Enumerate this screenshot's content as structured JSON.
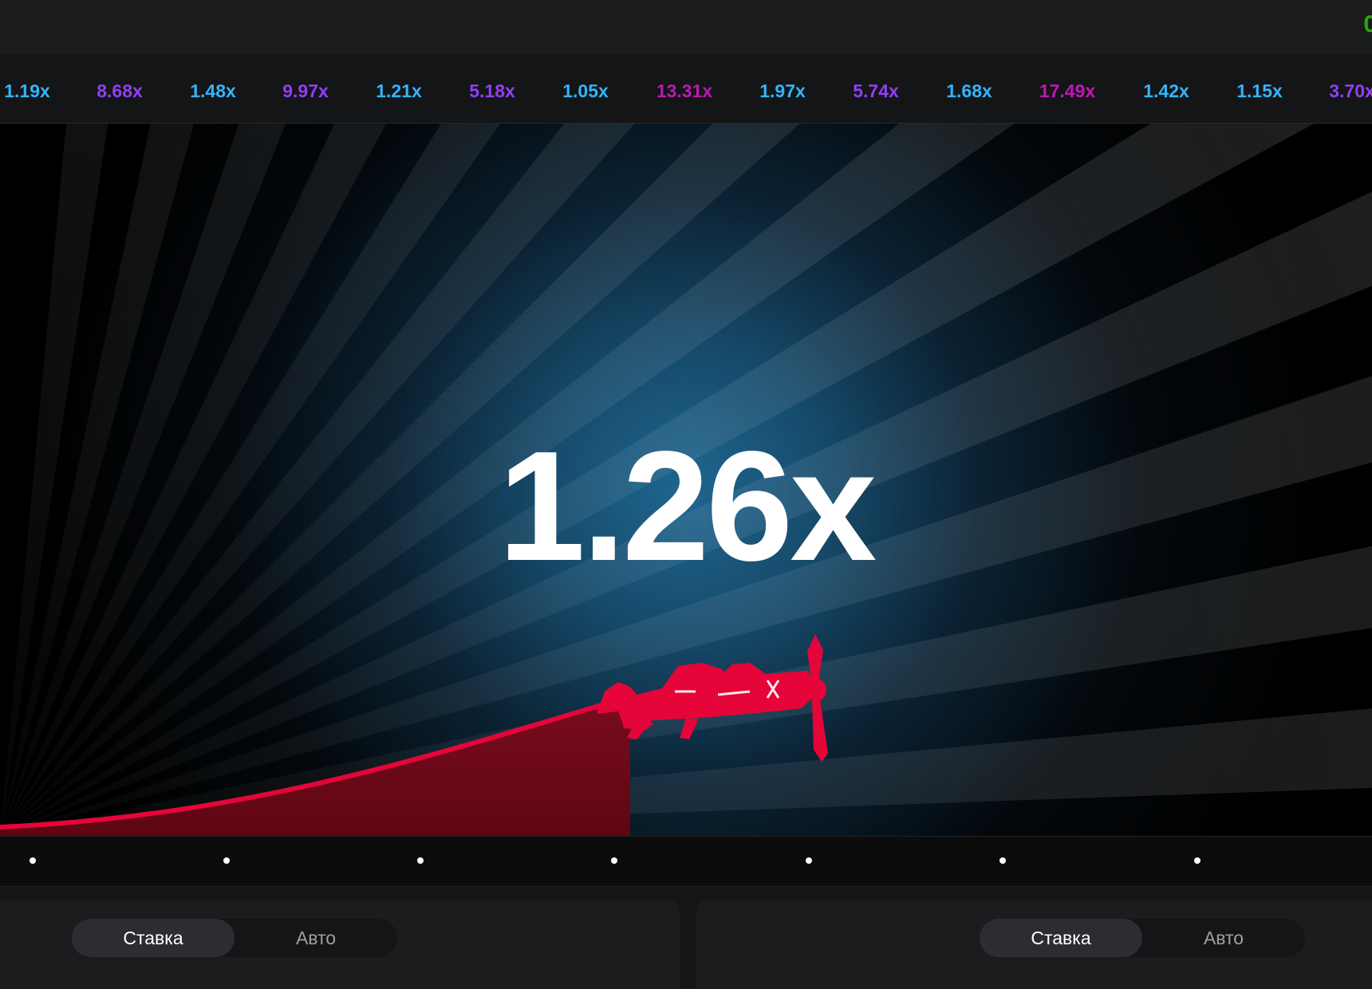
{
  "header": {
    "balance_fragment": "0"
  },
  "history": [
    {
      "value": "1.19x",
      "color": "#34b4ff"
    },
    {
      "value": "8.68x",
      "color": "#913ef8"
    },
    {
      "value": "1.48x",
      "color": "#34b4ff"
    },
    {
      "value": "9.97x",
      "color": "#913ef8"
    },
    {
      "value": "1.21x",
      "color": "#34b4ff"
    },
    {
      "value": "5.18x",
      "color": "#913ef8"
    },
    {
      "value": "1.05x",
      "color": "#34b4ff"
    },
    {
      "value": "13.31x",
      "color": "#c017b4"
    },
    {
      "value": "1.97x",
      "color": "#34b4ff"
    },
    {
      "value": "5.74x",
      "color": "#913ef8"
    },
    {
      "value": "1.68x",
      "color": "#34b4ff"
    },
    {
      "value": "17.49x",
      "color": "#c017b4"
    },
    {
      "value": "1.42x",
      "color": "#34b4ff"
    },
    {
      "value": "1.15x",
      "color": "#34b4ff"
    },
    {
      "value": "3.70x",
      "color": "#913ef8"
    }
  ],
  "game": {
    "multiplier": "1.26x",
    "plane_icon": "red-propeller-plane",
    "plane_color": "#e50539",
    "trail_color": "#e50539"
  },
  "bet_panels": [
    {
      "tabs": [
        {
          "label": "Ставка",
          "active": true
        },
        {
          "label": "Авто",
          "active": false
        }
      ]
    },
    {
      "tabs": [
        {
          "label": "Ставка",
          "active": true
        },
        {
          "label": "Авто",
          "active": false
        }
      ]
    }
  ]
}
